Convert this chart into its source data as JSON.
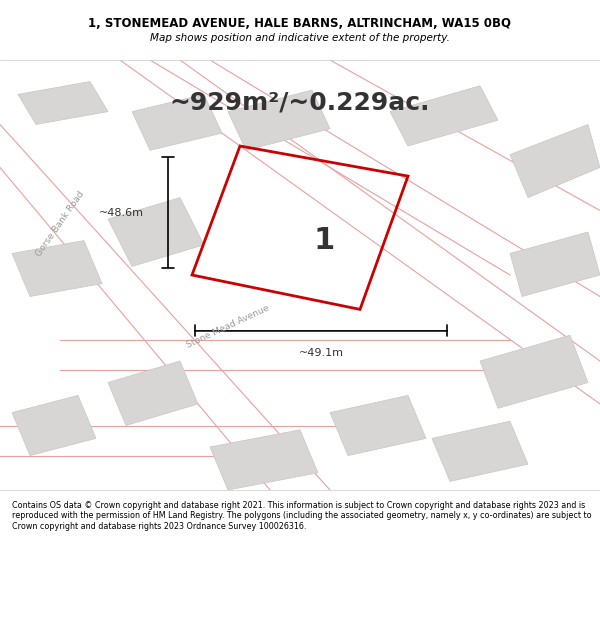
{
  "title_line1": "1, STONEMEAD AVENUE, HALE BARNS, ALTRINCHAM, WA15 0BQ",
  "title_line2": "Map shows position and indicative extent of the property.",
  "area_text": "~929m²/~0.229ac.",
  "dim_vertical": "~48.6m",
  "dim_horizontal": "~49.1m",
  "property_label": "1",
  "road_label1": "Gorse Bank Road",
  "road_label2": "Stone Mead Avenue",
  "footer_text": "Contains OS data © Crown copyright and database right 2021. This information is subject to Crown copyright and database rights 2023 and is reproduced with the permission of HM Land Registry. The polygons (including the associated geometry, namely x, y co-ordinates) are subject to Crown copyright and database rights 2023 Ordnance Survey 100026316.",
  "bg_color": "#f0eeee",
  "map_bg": "#f5f3f3",
  "road_line_color": "#e8a0a0",
  "building_fill": "#d8d5d5",
  "building_edge": "#c8c5c5",
  "property_fill": "none",
  "property_edge": "#cc0000",
  "title_bg": "#ffffff",
  "footer_bg": "#ffffff"
}
